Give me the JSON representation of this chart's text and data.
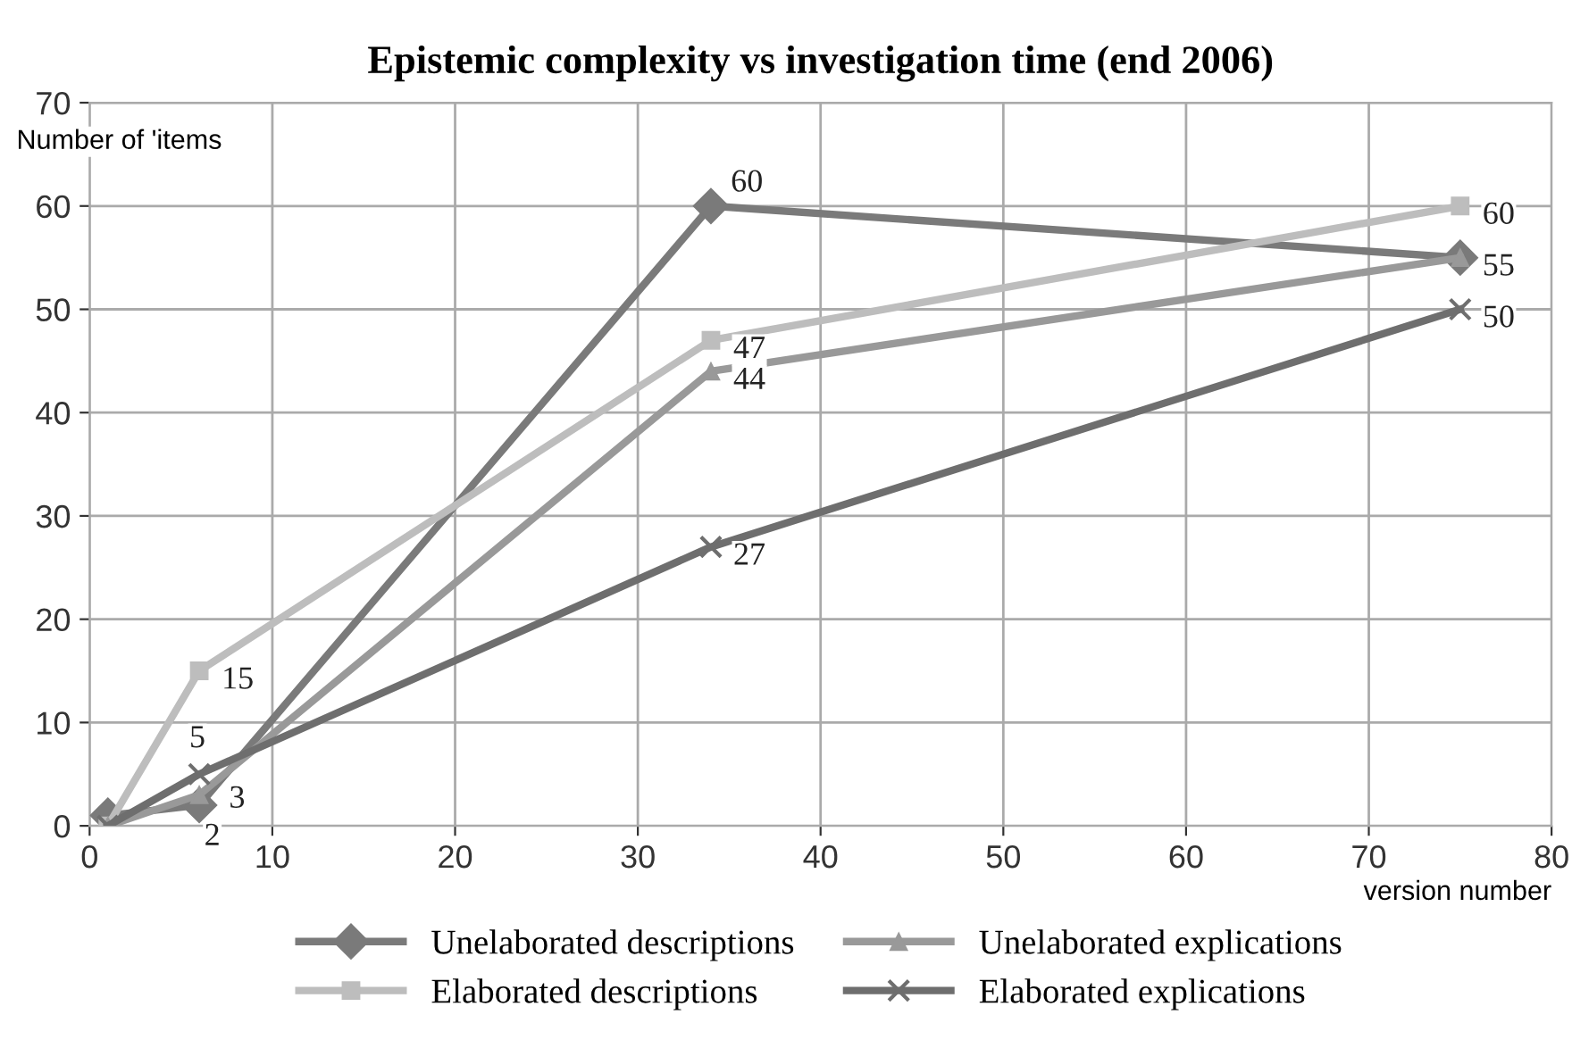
{
  "chart_data": {
    "type": "line",
    "title": "Epistemic complexity vs investigation time (end 2006)",
    "xlabel": "version number",
    "ylabel": "Number of 'items",
    "x": [
      1,
      6,
      34,
      75
    ],
    "xlim": [
      0,
      80
    ],
    "xticks": [
      0,
      10,
      20,
      30,
      40,
      50,
      60,
      70,
      80
    ],
    "ylim": [
      0,
      70
    ],
    "yticks": [
      0,
      10,
      20,
      30,
      40,
      50,
      60,
      70
    ],
    "grid": true,
    "legend": "bottom",
    "series": [
      {
        "name": "Unelaborated descriptions",
        "color": "#7a7a7a",
        "marker": "diamond",
        "values": [
          1,
          2,
          60,
          55
        ],
        "value_labels": [
          null,
          "2",
          "60",
          null
        ]
      },
      {
        "name": "Elaborated descriptions",
        "color": "#bdbdbd",
        "marker": "square",
        "values": [
          0,
          15,
          47,
          60
        ],
        "value_labels": [
          null,
          "15",
          "47",
          "60"
        ]
      },
      {
        "name": "Unelaborated explications",
        "color": "#999999",
        "marker": "triangle",
        "values": [
          0,
          3,
          44,
          55
        ],
        "value_labels": [
          null,
          "3",
          "44",
          "55"
        ]
      },
      {
        "name": "Elaborated explications",
        "color": "#6e6e6e",
        "marker": "cross",
        "values": [
          0,
          5,
          27,
          50
        ],
        "value_labels": [
          null,
          "5",
          "27",
          "50"
        ]
      }
    ]
  }
}
